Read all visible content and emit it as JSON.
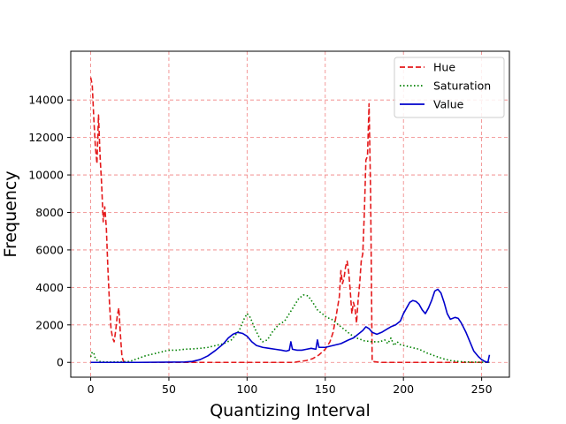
{
  "chart_data": {
    "type": "line",
    "title": "",
    "xlabel": "Quantizing Interval",
    "ylabel": "Frequency",
    "xlim": [
      -12.75,
      267.75
    ],
    "ylim": [
      -790,
      16600
    ],
    "xticks": [
      0,
      50,
      100,
      150,
      200,
      250
    ],
    "yticks": [
      0,
      2000,
      4000,
      6000,
      8000,
      10000,
      12000,
      14000
    ],
    "grid": true,
    "grid_color": "#f08080",
    "legend_position": "top-right",
    "series": [
      {
        "name": "Hue",
        "color": "#e41a1c",
        "dash": "dashed",
        "points": [
          [
            0,
            15200
          ],
          [
            1,
            14800
          ],
          [
            2,
            13000
          ],
          [
            3,
            11500
          ],
          [
            4,
            10600
          ],
          [
            5,
            13200
          ],
          [
            6,
            11000
          ],
          [
            7,
            9500
          ],
          [
            8,
            7500
          ],
          [
            9,
            8300
          ],
          [
            10,
            7200
          ],
          [
            11,
            5000
          ],
          [
            12,
            3200
          ],
          [
            13,
            1800
          ],
          [
            14,
            1300
          ],
          [
            15,
            1100
          ],
          [
            16,
            1700
          ],
          [
            17,
            2500
          ],
          [
            18,
            2900
          ],
          [
            19,
            1500
          ],
          [
            20,
            300
          ],
          [
            21,
            50
          ],
          [
            25,
            0
          ],
          [
            50,
            0
          ],
          [
            100,
            0
          ],
          [
            130,
            0
          ],
          [
            138,
            100
          ],
          [
            142,
            200
          ],
          [
            146,
            400
          ],
          [
            150,
            700
          ],
          [
            153,
            1100
          ],
          [
            155,
            1600
          ],
          [
            157,
            2500
          ],
          [
            159,
            3500
          ],
          [
            160,
            4900
          ],
          [
            161,
            4200
          ],
          [
            162,
            4500
          ],
          [
            163,
            5100
          ],
          [
            164,
            5400
          ],
          [
            165,
            4800
          ],
          [
            166,
            3800
          ],
          [
            167,
            2600
          ],
          [
            168,
            3200
          ],
          [
            169,
            2900
          ],
          [
            170,
            2100
          ],
          [
            171,
            3300
          ],
          [
            172,
            4200
          ],
          [
            173,
            5400
          ],
          [
            174,
            5800
          ],
          [
            175,
            8000
          ],
          [
            176,
            10800
          ],
          [
            177,
            11000
          ],
          [
            178,
            13800
          ],
          [
            179,
            9000
          ],
          [
            180,
            50
          ],
          [
            185,
            0
          ],
          [
            250,
            0
          ],
          [
            255,
            0
          ]
        ]
      },
      {
        "name": "Saturation",
        "color": "#008000",
        "dash": "dotted",
        "points": [
          [
            0,
            300
          ],
          [
            1,
            550
          ],
          [
            2,
            500
          ],
          [
            3,
            200
          ],
          [
            5,
            50
          ],
          [
            10,
            20
          ],
          [
            20,
            30
          ],
          [
            25,
            50
          ],
          [
            30,
            200
          ],
          [
            35,
            350
          ],
          [
            40,
            450
          ],
          [
            45,
            550
          ],
          [
            50,
            650
          ],
          [
            55,
            650
          ],
          [
            60,
            700
          ],
          [
            65,
            720
          ],
          [
            70,
            750
          ],
          [
            75,
            800
          ],
          [
            80,
            900
          ],
          [
            85,
            1000
          ],
          [
            90,
            1200
          ],
          [
            95,
            1700
          ],
          [
            98,
            2300
          ],
          [
            100,
            2600
          ],
          [
            102,
            2400
          ],
          [
            105,
            1800
          ],
          [
            108,
            1300
          ],
          [
            110,
            1100
          ],
          [
            113,
            1200
          ],
          [
            116,
            1600
          ],
          [
            120,
            2000
          ],
          [
            124,
            2200
          ],
          [
            127,
            2600
          ],
          [
            130,
            3000
          ],
          [
            133,
            3400
          ],
          [
            136,
            3600
          ],
          [
            139,
            3550
          ],
          [
            142,
            3200
          ],
          [
            145,
            2800
          ],
          [
            148,
            2600
          ],
          [
            151,
            2400
          ],
          [
            154,
            2300
          ],
          [
            157,
            2100
          ],
          [
            160,
            1900
          ],
          [
            163,
            1700
          ],
          [
            166,
            1500
          ],
          [
            170,
            1300
          ],
          [
            175,
            1150
          ],
          [
            180,
            1100
          ],
          [
            185,
            1100
          ],
          [
            188,
            1200
          ],
          [
            190,
            1000
          ],
          [
            192,
            1300
          ],
          [
            194,
            900
          ],
          [
            196,
            1100
          ],
          [
            198,
            950
          ],
          [
            200,
            900
          ],
          [
            205,
            800
          ],
          [
            210,
            700
          ],
          [
            215,
            500
          ],
          [
            220,
            350
          ],
          [
            225,
            200
          ],
          [
            230,
            100
          ],
          [
            235,
            50
          ],
          [
            240,
            20
          ],
          [
            250,
            10
          ],
          [
            255,
            0
          ]
        ]
      },
      {
        "name": "Value",
        "color": "#0000cc",
        "dash": "solid",
        "points": [
          [
            0,
            0
          ],
          [
            30,
            0
          ],
          [
            60,
            20
          ],
          [
            65,
            50
          ],
          [
            70,
            150
          ],
          [
            75,
            350
          ],
          [
            80,
            650
          ],
          [
            85,
            1000
          ],
          [
            88,
            1300
          ],
          [
            91,
            1500
          ],
          [
            94,
            1600
          ],
          [
            97,
            1550
          ],
          [
            100,
            1400
          ],
          [
            103,
            1100
          ],
          [
            106,
            900
          ],
          [
            110,
            800
          ],
          [
            114,
            750
          ],
          [
            118,
            700
          ],
          [
            122,
            650
          ],
          [
            125,
            600
          ],
          [
            127,
            650
          ],
          [
            128,
            1100
          ],
          [
            129,
            700
          ],
          [
            132,
            650
          ],
          [
            135,
            650
          ],
          [
            138,
            700
          ],
          [
            141,
            750
          ],
          [
            144,
            700
          ],
          [
            145,
            1200
          ],
          [
            146,
            800
          ],
          [
            150,
            800
          ],
          [
            155,
            900
          ],
          [
            160,
            1000
          ],
          [
            165,
            1200
          ],
          [
            168,
            1300
          ],
          [
            171,
            1500
          ],
          [
            174,
            1700
          ],
          [
            176,
            1900
          ],
          [
            178,
            1800
          ],
          [
            180,
            1600
          ],
          [
            183,
            1500
          ],
          [
            186,
            1600
          ],
          [
            189,
            1750
          ],
          [
            192,
            1900
          ],
          [
            195,
            2000
          ],
          [
            198,
            2200
          ],
          [
            200,
            2600
          ],
          [
            202,
            2900
          ],
          [
            204,
            3200
          ],
          [
            206,
            3300
          ],
          [
            208,
            3250
          ],
          [
            210,
            3100
          ],
          [
            212,
            2800
          ],
          [
            214,
            2600
          ],
          [
            216,
            2900
          ],
          [
            218,
            3300
          ],
          [
            220,
            3800
          ],
          [
            222,
            3900
          ],
          [
            224,
            3700
          ],
          [
            226,
            3200
          ],
          [
            228,
            2600
          ],
          [
            230,
            2300
          ],
          [
            233,
            2400
          ],
          [
            235,
            2350
          ],
          [
            237,
            2100
          ],
          [
            240,
            1600
          ],
          [
            243,
            1000
          ],
          [
            245,
            600
          ],
          [
            248,
            300
          ],
          [
            250,
            150
          ],
          [
            252,
            50
          ],
          [
            254,
            0
          ],
          [
            255,
            400
          ]
        ]
      }
    ]
  }
}
